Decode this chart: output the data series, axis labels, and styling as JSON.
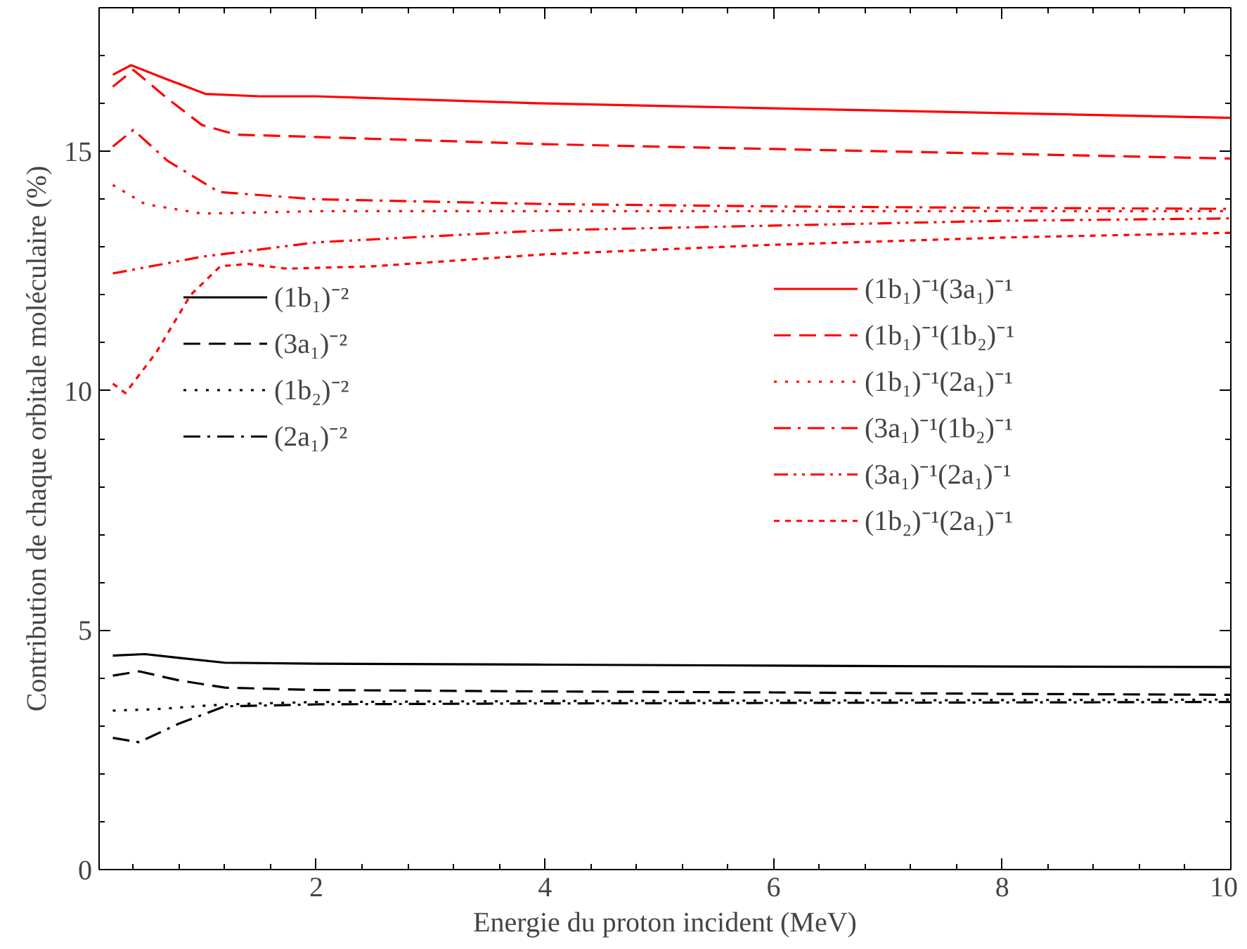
{
  "chart_data": {
    "type": "line",
    "xlabel": "Energie du proton incident (MeV)",
    "ylabel": "Contribution de chaque orbitale moléculaire (%)",
    "xlim": [
      0.1,
      10
    ],
    "ylim": [
      0,
      18
    ],
    "xticks": [
      2,
      4,
      6,
      8,
      10
    ],
    "yticks": [
      0,
      5,
      10,
      15
    ],
    "grid": false,
    "legend": "center",
    "marker": "none",
    "series": [
      {
        "name": "(1b₁)⁻²",
        "color": "#000000",
        "line_style": "solid",
        "x": [
          0.22,
          0.5,
          0.8,
          1.2,
          2,
          4,
          6,
          8,
          10
        ],
        "values": [
          4.47,
          4.5,
          4.42,
          4.32,
          4.3,
          4.28,
          4.26,
          4.24,
          4.23
        ]
      },
      {
        "name": "(3a₁)⁻²",
        "color": "#000000",
        "line_style": "dashed",
        "x": [
          0.22,
          0.45,
          0.8,
          1.2,
          2,
          4,
          6,
          8,
          10
        ],
        "values": [
          4.05,
          4.14,
          3.95,
          3.8,
          3.75,
          3.72,
          3.7,
          3.67,
          3.65
        ]
      },
      {
        "name": "(1b₂)⁻²",
        "color": "#000000",
        "line_style": "dotted",
        "x": [
          0.22,
          0.6,
          1.2,
          2,
          4,
          6,
          8,
          10
        ],
        "values": [
          3.32,
          3.35,
          3.45,
          3.5,
          3.52,
          3.53,
          3.54,
          3.55
        ]
      },
      {
        "name": "(2a₁)⁻²",
        "color": "#000000",
        "line_style": "dashdot",
        "x": [
          0.22,
          0.45,
          0.8,
          1.2,
          2,
          4,
          6,
          8,
          10
        ],
        "values": [
          2.75,
          2.66,
          3.05,
          3.41,
          3.45,
          3.47,
          3.48,
          3.49,
          3.5
        ]
      },
      {
        "name": "(1b₁)⁻¹(3a₁)⁻¹",
        "color": "#ff0000",
        "line_style": "solid",
        "x": [
          0.22,
          0.38,
          0.7,
          1.03,
          1.5,
          2,
          4,
          6,
          8,
          10
        ],
        "values": [
          16.6,
          16.8,
          16.5,
          16.2,
          16.15,
          16.15,
          16.0,
          15.9,
          15.8,
          15.7
        ]
      },
      {
        "name": "(1b₁)⁻¹(1b₂)⁻¹",
        "color": "#ff0000",
        "line_style": "dashed",
        "x": [
          0.22,
          0.4,
          0.7,
          1.0,
          1.3,
          2,
          4,
          6,
          8,
          10
        ],
        "values": [
          16.35,
          16.7,
          16.1,
          15.55,
          15.35,
          15.3,
          15.15,
          15.05,
          14.95,
          14.85
        ]
      },
      {
        "name": "(1b₁)⁻¹(2a₁)⁻¹",
        "color": "#ff0000",
        "line_style": "dotted",
        "x": [
          0.22,
          0.5,
          1.0,
          2,
          4,
          6,
          8,
          10
        ],
        "values": [
          14.3,
          13.9,
          13.7,
          13.75,
          13.75,
          13.75,
          13.75,
          13.75
        ]
      },
      {
        "name": "(3a₁)⁻¹(1b₂)⁻¹",
        "color": "#ff0000",
        "line_style": "dashdot",
        "x": [
          0.22,
          0.4,
          0.7,
          1.15,
          2,
          4,
          6,
          8,
          10
        ],
        "values": [
          15.1,
          15.45,
          14.8,
          14.15,
          14.0,
          13.9,
          13.85,
          13.82,
          13.8
        ]
      },
      {
        "name": "(3a₁)⁻¹(2a₁)⁻¹",
        "color": "#ff0000",
        "line_style": "dashdotdot",
        "x": [
          0.22,
          1,
          2,
          4,
          6,
          8,
          10
        ],
        "values": [
          12.45,
          12.8,
          13.1,
          13.35,
          13.45,
          13.55,
          13.6
        ]
      },
      {
        "name": "(1b₂)⁻¹(2a₁)⁻¹",
        "color": "#ff0000",
        "line_style": "shortdash",
        "x": [
          0.22,
          0.33,
          0.6,
          0.9,
          1.16,
          1.4,
          1.74,
          2.5,
          4,
          6,
          8,
          10
        ],
        "values": [
          10.15,
          9.95,
          10.8,
          12.0,
          12.6,
          12.65,
          12.55,
          12.6,
          12.85,
          13.05,
          13.2,
          13.3
        ]
      }
    ]
  }
}
